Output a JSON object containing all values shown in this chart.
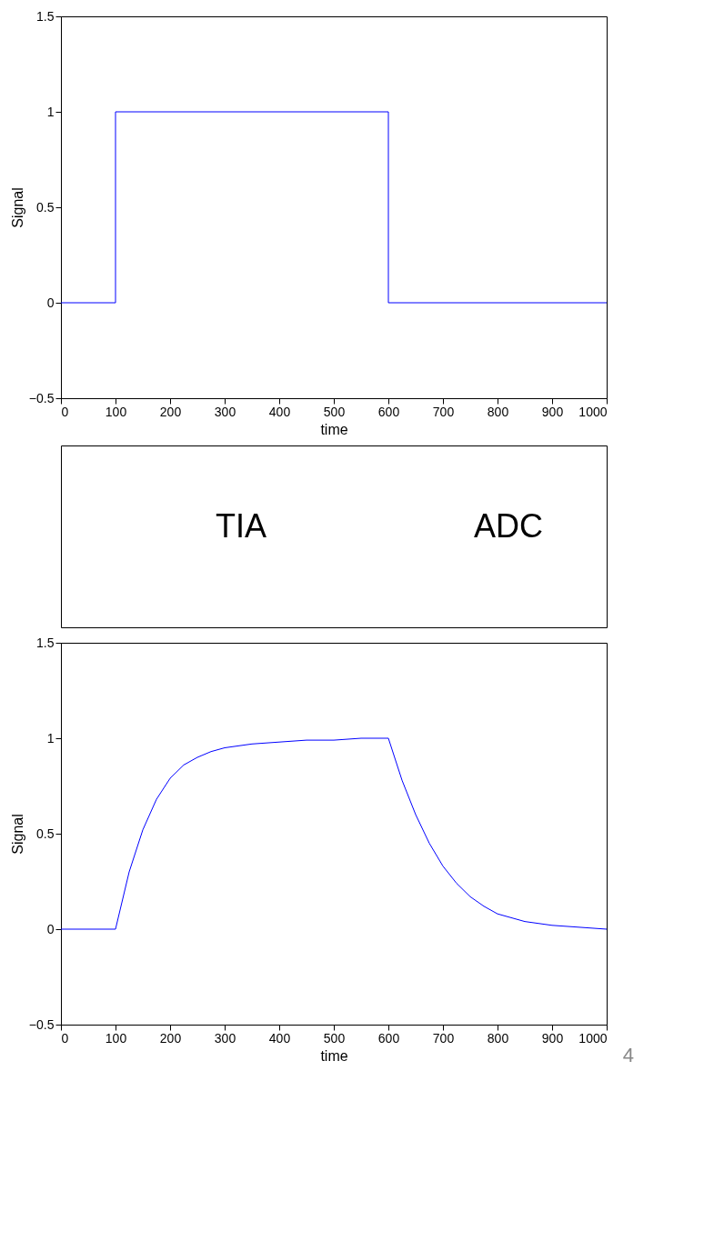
{
  "chart_data": [
    {
      "type": "line",
      "xlabel": "time",
      "ylabel": "Signal",
      "xlim": [
        0,
        1000
      ],
      "ylim": [
        -0.5,
        1.5
      ],
      "xticks": [
        0,
        100,
        200,
        300,
        400,
        500,
        600,
        700,
        800,
        900,
        1000
      ],
      "yticks": [
        -0.5,
        0,
        0.5,
        1,
        1.5
      ],
      "grid": false,
      "series": [
        {
          "color": "#0000ff",
          "x": [
            0,
            100,
            100,
            600,
            600,
            1000
          ],
          "values": [
            0,
            0,
            1,
            1,
            0,
            0
          ]
        }
      ]
    },
    {
      "type": "other",
      "annotations": [
        "TIA",
        "ADC"
      ]
    },
    {
      "type": "line",
      "xlabel": "time",
      "ylabel": "Signal",
      "xlim": [
        0,
        1000
      ],
      "ylim": [
        -0.5,
        1.5
      ],
      "xticks": [
        0,
        100,
        200,
        300,
        400,
        500,
        600,
        700,
        800,
        900,
        1000
      ],
      "yticks": [
        -0.5,
        0,
        0.5,
        1,
        1.5
      ],
      "grid": false,
      "annotations": [
        "4"
      ],
      "series": [
        {
          "color": "#0000ff",
          "x": [
            0,
            100,
            125,
            150,
            175,
            200,
            225,
            250,
            275,
            300,
            350,
            400,
            450,
            500,
            550,
            600,
            625,
            650,
            675,
            700,
            725,
            750,
            775,
            800,
            850,
            900,
            950,
            1000
          ],
          "values": [
            0,
            0,
            0.3,
            0.52,
            0.68,
            0.79,
            0.86,
            0.9,
            0.93,
            0.95,
            0.97,
            0.98,
            0.99,
            0.99,
            1.0,
            1.0,
            0.78,
            0.6,
            0.45,
            0.33,
            0.24,
            0.17,
            0.12,
            0.08,
            0.04,
            0.02,
            0.01,
            0.0
          ]
        }
      ]
    }
  ]
}
